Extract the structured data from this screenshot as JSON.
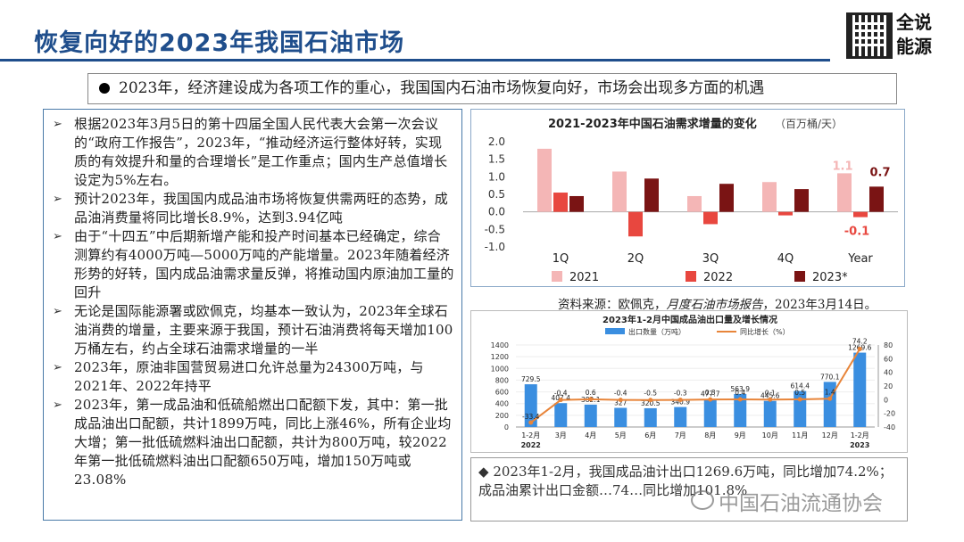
{
  "title": "恢复向好的2023年我国石油市场",
  "logo_text": "全说能源",
  "banner": "2023年，经济建设成为各项工作的重心，我国国内石油市场恢复向好，市场会出现多方面的机遇",
  "bullets": [
    "根据2023年3月5日的第十四届全国人民代表大会第一次会议的“政府工作报告”，2023年，“推动经济运行整体好转，实现质的有效提升和量的合理增长”是工作重点；国内生产总值增长设定为5%左右。",
    "预计2023年，我国国内成品油市场将恢复供需两旺的态势，成品油消费量将同比增长8.9%，达到3.94亿吨",
    "由于“十四五”中后期新增产能和投产时间基本已经确定，综合测算约有4000万吨—5000万吨的产能增量。2023年随着经济形势的好转，国内成品油需求量反弹，将推动国内原油加工量的回升",
    "无论是国际能源署或欧佩克，均基本一致认为，2023年全球石油消费的增量，主要来源于我国，预计石油消费将每天增加100万桶左右，约占全球石油需求增量的一半",
    "2023年，原油非国营贸易进口允许总量为24300万吨，与2021年、2022年持平",
    "2023年，第一成品油和低硫船燃出口配额下发，其中：第一批成品油出口配额，共计1899万吨，同比上涨46%，所有企业均大增；第一批低硫燃料油出口配额，共计为800万吨，较2022年第一批低硫燃料油出口配额650万吨，增加150万吨或23.08%"
  ],
  "source_prefix": "资料来源：欧佩克，",
  "source_report": "月度石油市场报告",
  "source_suffix": "，2023年3月14日。",
  "bottom_note": "2023年1-2月，我国成品油计出口1269.6万吨，同比增加74.2%；成品油累计出口金额…74…同比增加101.8%",
  "watermark": "中国石油流通协会",
  "colors": {
    "title": "#1f4e8c",
    "c2021": "#f4b6b6",
    "c2022": "#e8473f",
    "c2023": "#7a1414",
    "bar_blue": "#3a8ee0",
    "line_orange": "#e8853a"
  },
  "chart_data": [
    {
      "type": "bar",
      "title": "2021-2023年中国石油需求增量的变化",
      "unit": "（百万桶/天）",
      "categories": [
        "1Q",
        "2Q",
        "3Q",
        "4Q",
        "Year"
      ],
      "ylim": [
        -1.0,
        2.0
      ],
      "yticks": [
        "2.0",
        "1.5",
        "1.0",
        "0.5",
        "0.0",
        "-0.5",
        "-1.0"
      ],
      "series": [
        {
          "name": "2021",
          "values": [
            1.8,
            1.15,
            0.45,
            0.85,
            1.1
          ]
        },
        {
          "name": "2022",
          "values": [
            0.55,
            -0.7,
            -0.35,
            -0.1,
            -0.15
          ]
        },
        {
          "name": "2023*",
          "values": [
            0.45,
            0.95,
            0.8,
            0.65,
            0.72
          ]
        }
      ],
      "annotations": [
        "1.1",
        "0.7",
        "-0.1"
      ],
      "legend": "bottom"
    },
    {
      "type": "bar",
      "title": "2023年1-2月中国成品油出口量及增长情况",
      "categories": [
        "1-2月",
        "3月",
        "4月",
        "5月",
        "6月",
        "7月",
        "8月",
        "9月",
        "10月",
        "11月",
        "12月",
        "1-2月"
      ],
      "year_labels": [
        "2022",
        "2023"
      ],
      "y_left": {
        "ticks": [
          "1400",
          "1200",
          "1000",
          "800",
          "600",
          "400",
          "200",
          "0"
        ],
        "lim": [
          0,
          1400
        ]
      },
      "y_right": {
        "ticks": [
          "80",
          "60",
          "40",
          "20",
          "0",
          "-20",
          "-40"
        ],
        "lim": [
          -40,
          80
        ]
      },
      "series": [
        {
          "name": "出口数量（万吨）",
          "values": [
            729.5,
            407.4,
            382.1,
            327,
            320.5,
            340.9,
            477.7,
            563.9,
            445.6,
            614.4,
            770.1,
            1269.6
          ],
          "labels": [
            "729.5",
            "407.4",
            "382.1",
            "327",
            "320.5",
            "340.9",
            "477.7",
            "563.9",
            "445.6",
            "614.4",
            "770.1",
            "1269.6"
          ]
        },
        {
          "name": "同比增长（%）",
          "values": [
            -33.4,
            -0.4,
            0.6,
            -0.4,
            -0.5,
            -0.3,
            0.3,
            0.4,
            0.1,
            0.5,
            1.4,
            74.2
          ],
          "labels": [
            "-33.4",
            "-0.4",
            "0.6",
            "-0.4",
            "-0.5",
            "-0.3",
            "0.3",
            "0.4",
            "0.1",
            "0.5",
            "1.4",
            "74.2"
          ]
        }
      ]
    }
  ]
}
